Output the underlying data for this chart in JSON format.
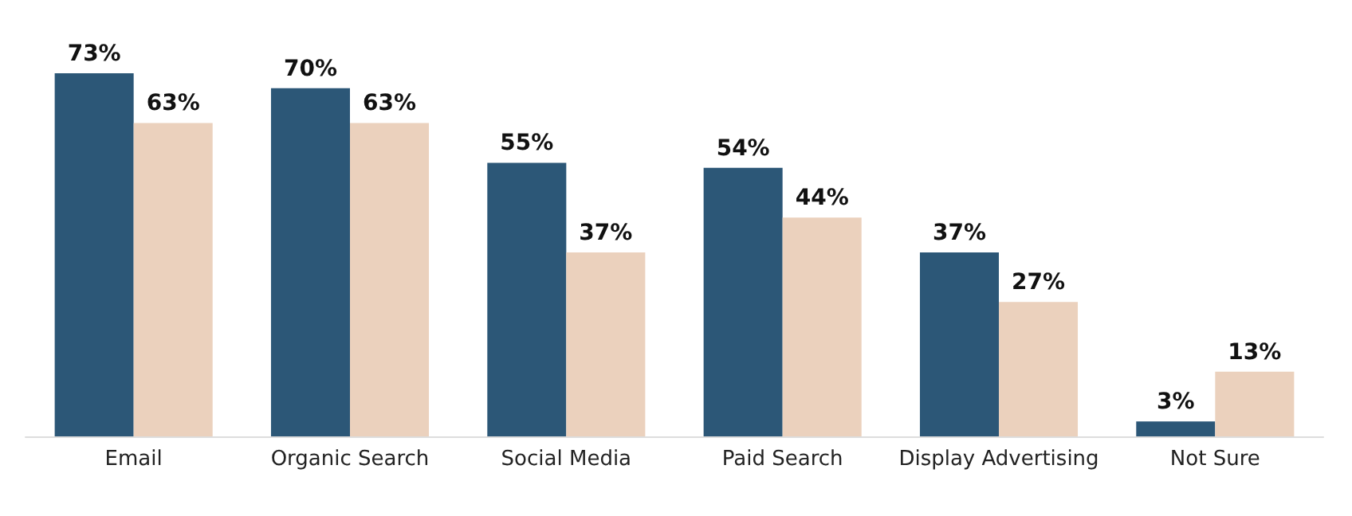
{
  "chart_data": {
    "type": "bar",
    "categories": [
      "Email",
      "Organic Search",
      "Social Media",
      "Paid Search",
      "Display Advertising",
      "Not Sure"
    ],
    "series": [
      {
        "color": "#2c5777",
        "values": [
          73,
          70,
          55,
          54,
          37,
          3
        ],
        "value_labels": [
          "73%",
          "70%",
          "55%",
          "54%",
          "37%",
          "3%"
        ]
      },
      {
        "color": "#ebd1bd",
        "values": [
          63,
          63,
          37,
          44,
          27,
          13
        ],
        "value_labels": [
          "63%",
          "63%",
          "37%",
          "44%",
          "27%",
          "13%"
        ]
      }
    ]
  }
}
